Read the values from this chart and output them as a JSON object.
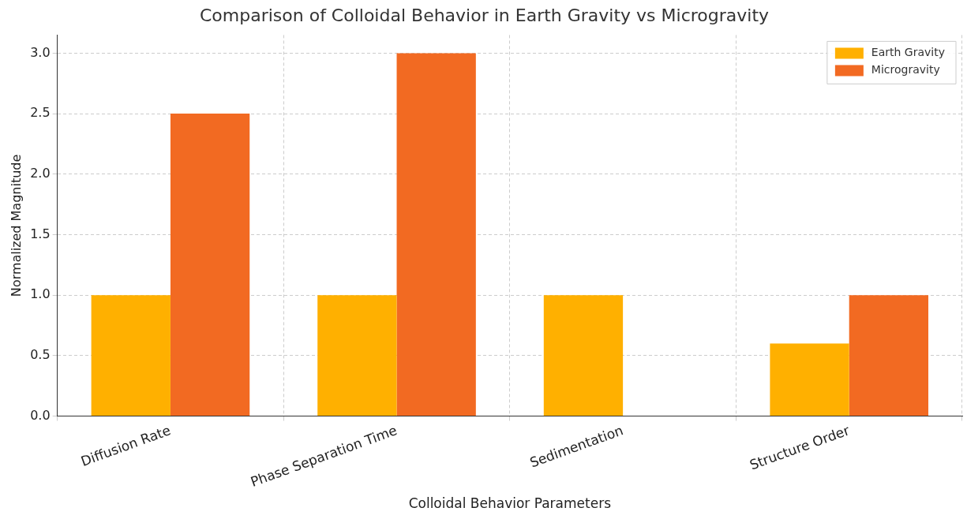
{
  "chart_data": {
    "type": "bar",
    "title": "Comparison of Colloidal Behavior in Earth Gravity vs Microgravity",
    "xlabel": "Colloidal Behavior Parameters",
    "ylabel": "Normalized Magnitude",
    "categories": [
      "Diffusion Rate",
      "Phase Separation Time",
      "Sedimentation",
      "Structure Order"
    ],
    "series": [
      {
        "name": "Earth Gravity",
        "color": "#ffb000",
        "values": [
          1,
          1,
          1,
          0.6
        ]
      },
      {
        "name": "Microgravity",
        "color": "#f26a22",
        "values": [
          2.5,
          3,
          0,
          1
        ]
      }
    ],
    "ylim": [
      0,
      3.15
    ],
    "yticks": [
      {
        "value": 0,
        "label": "0.0"
      },
      {
        "value": 0.5,
        "label": "0.5"
      },
      {
        "value": 1,
        "label": "1.0"
      },
      {
        "value": 1.5,
        "label": "1.5"
      },
      {
        "value": 2,
        "label": "2.0"
      },
      {
        "value": 2.5,
        "label": "2.5"
      },
      {
        "value": 3,
        "label": "3.0"
      }
    ],
    "grid": true,
    "legend": "top right"
  }
}
